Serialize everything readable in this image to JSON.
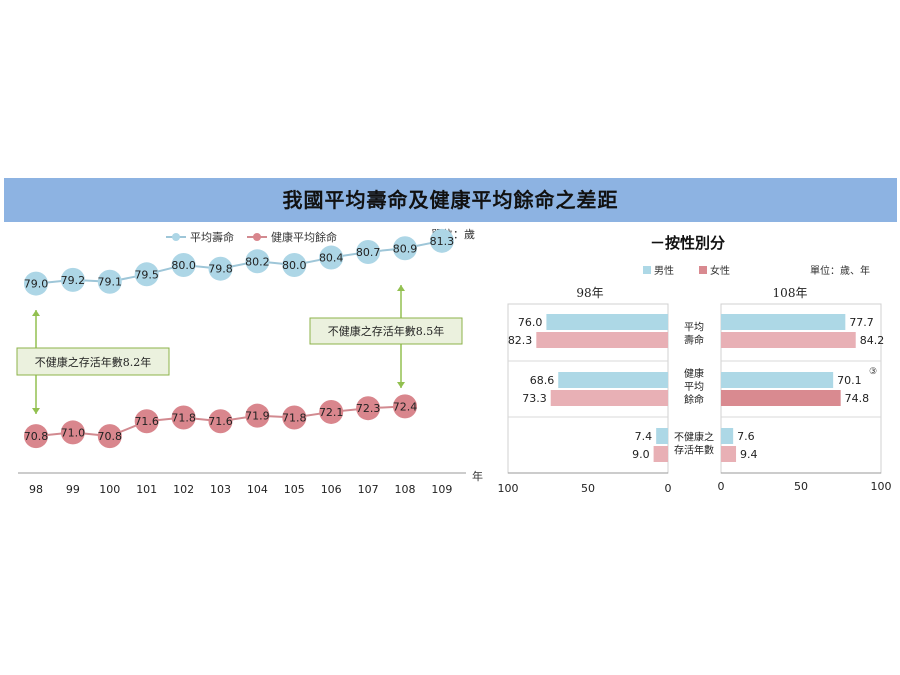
{
  "title": "我國平均壽命及健康平均餘命之差距",
  "colors": {
    "banner": "#8db3e2",
    "life_line": "#9ec6d8",
    "life_marker": "#add6e6",
    "healthy_line": "#d28a90",
    "healthy_marker": "#d9868d",
    "male_bar": "#add8e6",
    "female_bar": "#e8b0b5",
    "female_bar_dark": "#d98a90",
    "annotation_fill": "#ebf1de",
    "annotation_border": "#8cb34a",
    "arrow": "#92c050"
  },
  "left_chart": {
    "unit_label": "單位：歲",
    "x_unit_label": "年",
    "annotation_1": "不健康之存活年數8.2年",
    "annotation_2": "不健康之存活年數8.5年"
  },
  "right_chart": {
    "subtitle": "－按性別分",
    "unit_label": "單位：歲、年",
    "panel_98_title": "98年",
    "panel_108_title": "108年"
  },
  "chart_data": [
    {
      "type": "line",
      "x": [
        "98",
        "99",
        "100",
        "101",
        "102",
        "103",
        "104",
        "105",
        "106",
        "107",
        "108",
        "109"
      ],
      "series": [
        {
          "name": "平均壽命",
          "values": [
            79.0,
            79.2,
            79.1,
            79.5,
            80.0,
            79.8,
            80.2,
            80.0,
            80.4,
            80.7,
            80.9,
            81.3
          ]
        },
        {
          "name": "健康平均餘命",
          "values": [
            70.8,
            71.0,
            70.8,
            71.6,
            71.8,
            71.6,
            71.9,
            71.8,
            72.1,
            72.3,
            72.4,
            null
          ]
        }
      ],
      "legend_position": "top"
    },
    {
      "type": "bar",
      "orientation": "horizontal",
      "categories": [
        "平均壽命",
        "健康平均餘命",
        "不健康之存活年數"
      ],
      "category_lines": [
        [
          "平均",
          "壽命"
        ],
        [
          "健康",
          "平均",
          "餘命"
        ],
        [
          "不健康之",
          "存活年數"
        ]
      ],
      "legend": [
        "男性",
        "女性"
      ],
      "panels": [
        {
          "name": "98年",
          "male": [
            76.0,
            68.6,
            7.4
          ],
          "female": [
            82.3,
            73.3,
            9.0
          ],
          "ticks": [
            "100",
            "50",
            "0"
          ],
          "xlim": [
            100,
            0
          ]
        },
        {
          "name": "108年",
          "male": [
            77.7,
            70.1,
            7.6
          ],
          "female": [
            84.2,
            74.8,
            9.4
          ],
          "ticks": [
            "0",
            "50",
            "100"
          ],
          "xlim": [
            0,
            100
          ]
        }
      ],
      "annotation": "③",
      "legend_position": "top"
    }
  ]
}
